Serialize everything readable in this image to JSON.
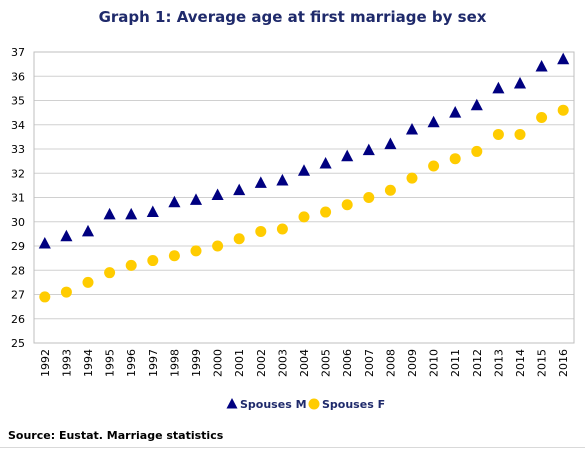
{
  "title": "Graph 1: Average age at first marriage by sex",
  "source": "Source: Eustat. Marriage statistics",
  "colors": {
    "male": "#000080",
    "female": "#FFCC00",
    "title": "#1f2a6b",
    "grid": "#d0d0d0"
  },
  "chart_data": {
    "type": "scatter",
    "title": "Graph 1: Average age at first marriage by sex",
    "xlabel": "",
    "ylabel": "",
    "categories": [
      "1992",
      "1993",
      "1994",
      "1995",
      "1996",
      "1997",
      "1998",
      "1999",
      "2000",
      "2001",
      "2002",
      "2003",
      "2004",
      "2005",
      "2006",
      "2007",
      "2008",
      "2009",
      "2010",
      "2011",
      "2012",
      "2013",
      "2014",
      "2015",
      "2016"
    ],
    "ylim": [
      25,
      37
    ],
    "yticks": [
      25,
      26,
      27,
      28,
      29,
      30,
      31,
      32,
      33,
      34,
      35,
      36,
      37
    ],
    "grid": true,
    "legend_position": "bottom",
    "series": [
      {
        "name": "Spouses M",
        "marker": "triangle",
        "color": "#000080",
        "values": [
          29.1,
          29.4,
          29.6,
          30.3,
          30.3,
          30.4,
          30.8,
          30.9,
          31.1,
          31.3,
          31.6,
          31.7,
          32.1,
          32.4,
          32.7,
          32.95,
          33.2,
          33.8,
          34.1,
          34.5,
          34.8,
          35.5,
          35.7,
          36.4,
          36.7
        ]
      },
      {
        "name": "Spouses F",
        "marker": "circle",
        "color": "#FFCC00",
        "values": [
          26.9,
          27.1,
          27.5,
          27.9,
          28.2,
          28.4,
          28.6,
          28.8,
          29.0,
          29.3,
          29.6,
          29.7,
          30.2,
          30.4,
          30.7,
          31.0,
          31.3,
          31.8,
          32.3,
          32.6,
          32.9,
          33.6,
          33.6,
          34.3,
          34.6
        ]
      }
    ]
  }
}
